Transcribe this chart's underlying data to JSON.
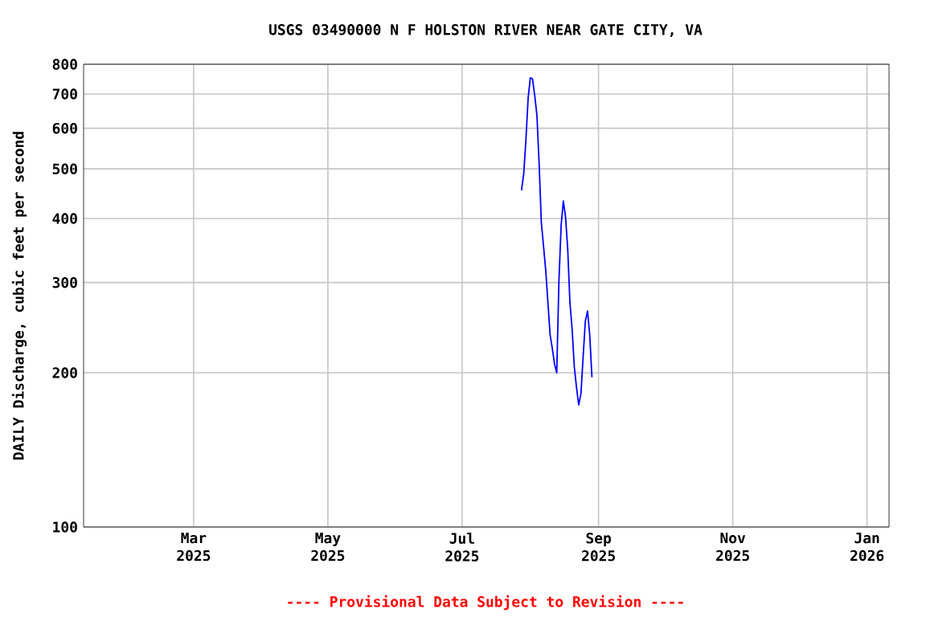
{
  "chart_data": {
    "type": "line",
    "title": "USGS 03490000 N F HOLSTON RIVER NEAR GATE CITY, VA",
    "ylabel": "DAILY Discharge, cubic feet per second",
    "annotations": [
      "---- Provisional Data Subject to Revision ----"
    ],
    "x": [
      "2025-07-28",
      "2025-07-29",
      "2025-07-30",
      "2025-07-31",
      "2025-08-01",
      "2025-08-02",
      "2025-08-03",
      "2025-08-04",
      "2025-08-05",
      "2025-08-06",
      "2025-08-07",
      "2025-08-08",
      "2025-08-09",
      "2025-08-10",
      "2025-08-11",
      "2025-08-12",
      "2025-08-13",
      "2025-08-14",
      "2025-08-15",
      "2025-08-16",
      "2025-08-17",
      "2025-08-18",
      "2025-08-19",
      "2025-08-20",
      "2025-08-21",
      "2025-08-22",
      "2025-08-23",
      "2025-08-24",
      "2025-08-25",
      "2025-08-26",
      "2025-08-27",
      "2025-08-28",
      "2025-08-29"
    ],
    "series": [
      {
        "color": "#0000ff",
        "values": [
          454,
          489,
          570,
          687,
          753,
          749,
          695,
          636,
          512,
          393,
          353,
          317,
          274,
          237,
          223,
          208,
          200,
          302,
          388,
          433,
          403,
          348,
          274,
          243,
          205,
          187,
          173,
          182,
          215,
          252,
          264,
          237,
          196
        ]
      }
    ],
    "log": "y",
    "grid": true,
    "marker": "none",
    "line_style": "solid",
    "xlim": [
      "2025-01-10",
      "2026-01-11"
    ],
    "xticks": [
      {
        "value": "2025-03-01",
        "label": "Mar 2025"
      },
      {
        "value": "2025-05-01",
        "label": "May 2025"
      },
      {
        "value": "2025-07-01",
        "label": "Jul 2025"
      },
      {
        "value": "2025-09-01",
        "label": "Sep 2025"
      },
      {
        "value": "2025-11-01",
        "label": "Nov 2025"
      },
      {
        "value": "2026-01-01",
        "label": "Jan 2026"
      }
    ],
    "ylim": [
      100,
      800
    ],
    "yticks": [
      100,
      200,
      300,
      400,
      500,
      600,
      700,
      800
    ]
  }
}
